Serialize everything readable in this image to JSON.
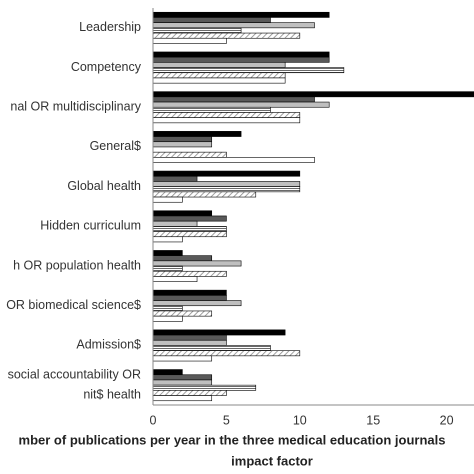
{
  "chart_data": {
    "type": "bar",
    "orientation": "horizontal",
    "x_label": [
      "mber of publications per year in the three medical education journals",
      "impact factor"
    ],
    "categories": [
      "Leadership",
      "Competency",
      "nal OR multidisciplinary",
      "General$",
      "Global health",
      "Hidden curriculum",
      "h OR population health",
      "OR biomedical science$",
      "Admission$",
      [
        "social accountability OR",
        "nit$ health"
      ]
    ],
    "series": [
      {
        "color": "#000000",
        "values": [
          12,
          12,
          23,
          6,
          10,
          4,
          2,
          5,
          9,
          2
        ]
      },
      {
        "color": "#595959",
        "values": [
          8,
          12,
          11,
          4,
          3,
          5,
          4,
          5,
          5,
          4
        ]
      },
      {
        "color": "#bfbfbf",
        "values": [
          11,
          9,
          12,
          4,
          10,
          3,
          6,
          6,
          5,
          4
        ]
      },
      {
        "color": "#ffffff",
        "hatch": "horizontal",
        "values": [
          6,
          13,
          8,
          0,
          10,
          5,
          2,
          2,
          8,
          7
        ]
      },
      {
        "color": "#ffffff",
        "hatch": "diagonal",
        "values": [
          10,
          9,
          10,
          5,
          7,
          5,
          5,
          4,
          10,
          5
        ]
      },
      {
        "color": "#ffffff",
        "values": [
          5,
          9,
          10,
          11,
          2,
          2,
          3,
          2,
          4,
          4
        ]
      }
    ],
    "xlim": [
      0,
      22
    ],
    "xticks": [
      0,
      5,
      10,
      15,
      20
    ]
  }
}
